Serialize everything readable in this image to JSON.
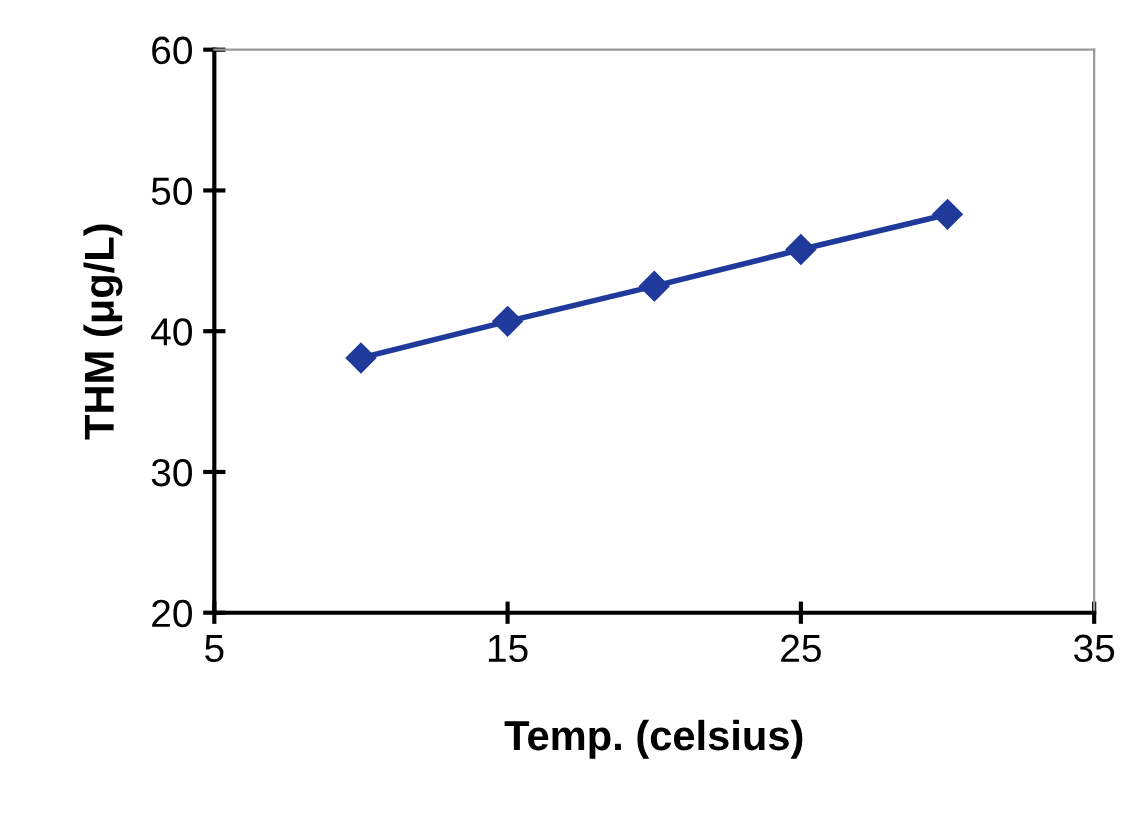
{
  "chart_data": {
    "type": "line",
    "xlabel": "Temp. (celsius)",
    "ylabel": "THM (μg/L)",
    "x": [
      10,
      15,
      20,
      25,
      30
    ],
    "series": [
      {
        "color": "#1f3a9a",
        "values": [
          38.1,
          40.7,
          43.2,
          45.8,
          48.3
        ]
      }
    ],
    "xlim": [
      5,
      35
    ],
    "xticks": [
      5,
      15,
      25,
      35
    ],
    "ylim": [
      20,
      60
    ],
    "yticks": [
      20,
      30,
      40,
      50,
      60
    ],
    "marker": "diamond",
    "line_style": "solid",
    "grid": false,
    "legend": false
  }
}
